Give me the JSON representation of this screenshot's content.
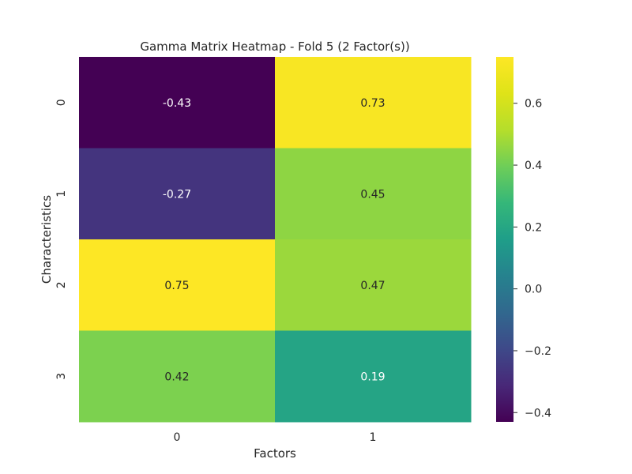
{
  "chart_data": {
    "type": "heatmap",
    "title": "Gamma Matrix Heatmap - Fold 5 (2 Factor(s))",
    "xlabel": "Factors",
    "ylabel": "Characteristics",
    "x_categories": [
      "0",
      "1"
    ],
    "y_categories": [
      "0",
      "1",
      "2",
      "3"
    ],
    "values": [
      [
        -0.43,
        0.73
      ],
      [
        -0.27,
        0.45
      ],
      [
        0.75,
        0.47
      ],
      [
        0.42,
        0.19
      ]
    ],
    "annotations": [
      [
        "-0.43",
        "0.73"
      ],
      [
        "-0.27",
        "0.45"
      ],
      [
        "0.75",
        "0.47"
      ],
      [
        "0.42",
        "0.19"
      ]
    ],
    "colormap": "viridis",
    "colorbar": {
      "vmin": -0.43,
      "vmax": 0.75,
      "ticks": [
        -0.4,
        -0.2,
        0.0,
        0.2,
        0.4,
        0.6
      ],
      "tick_labels": [
        "−0.4",
        "−0.2",
        "0.0",
        "0.2",
        "0.4",
        "0.6"
      ]
    },
    "grid": false
  }
}
